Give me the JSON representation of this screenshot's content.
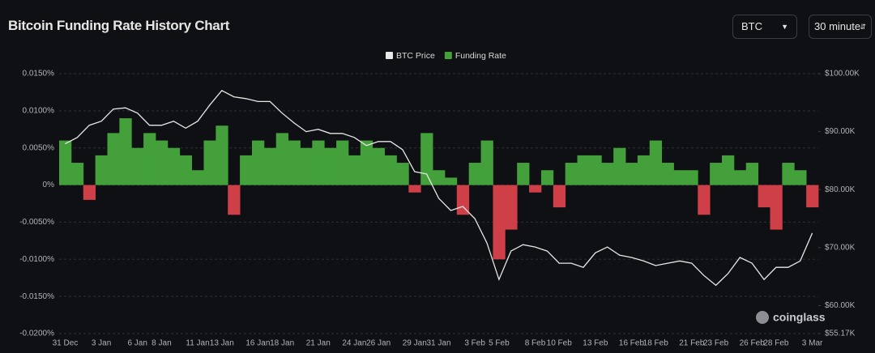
{
  "chart_data": {
    "type": "combo",
    "title": "Bitcoin Funding Rate History Chart",
    "controls": {
      "coin": "BTC",
      "interval": "30 minute"
    },
    "watermark": "coinglass",
    "categories": [
      "31 Dec",
      null,
      null,
      "3 Jan",
      null,
      null,
      "6 Jan",
      null,
      "8 Jan",
      null,
      null,
      "11 Jan",
      null,
      "13 Jan",
      null,
      null,
      "16 Jan",
      null,
      "18 Jan",
      null,
      null,
      "21 Jan",
      null,
      null,
      "24 Jan",
      null,
      "26 Jan",
      null,
      null,
      "29 Jan",
      null,
      "31 Jan",
      null,
      null,
      "3 Feb",
      null,
      "5 Feb",
      null,
      null,
      "8 Feb",
      null,
      "10 Feb",
      null,
      null,
      "13 Feb",
      null,
      null,
      "16 Feb",
      null,
      "18 Feb",
      null,
      null,
      "21 Feb",
      null,
      "23 Feb",
      null,
      null,
      "26 Feb",
      null,
      "28 Feb",
      null,
      null,
      "3 Mar"
    ],
    "series": [
      {
        "name": "BTC Price",
        "type": "line",
        "axis": "y2",
        "color": "#e8e8e8",
        "values": [
          87900,
          89000,
          91100,
          91800,
          93900,
          94100,
          93200,
          91100,
          91100,
          91800,
          90600,
          91800,
          94600,
          97100,
          96000,
          95700,
          95200,
          95200,
          93200,
          91500,
          90000,
          90400,
          89700,
          89700,
          89000,
          87600,
          88300,
          88300,
          86900,
          83100,
          82700,
          78500,
          76400,
          77100,
          75000,
          70800,
          64500,
          69400,
          70500,
          70100,
          69400,
          67300,
          67300,
          66600,
          69100,
          70100,
          68700,
          68300,
          67700,
          66900,
          67300,
          67700,
          67300,
          65200,
          63500,
          65500,
          68300,
          67300,
          64500,
          66600,
          66600,
          67700,
          72500
        ]
      },
      {
        "name": "Funding Rate",
        "type": "bar",
        "color": "#43a03a",
        "negative_color": "#cf3f48",
        "values": [
          0.006,
          0.003,
          -0.002,
          0.004,
          0.007,
          0.009,
          0.005,
          0.007,
          0.006,
          0.005,
          0.004,
          0.002,
          0.006,
          0.008,
          -0.004,
          0.004,
          0.006,
          0.005,
          0.007,
          0.006,
          0.005,
          0.006,
          0.005,
          0.006,
          0.004,
          0.006,
          0.005,
          0.004,
          0.003,
          -0.001,
          0.007,
          0.002,
          0.001,
          -0.004,
          0.003,
          0.006,
          -0.01,
          -0.006,
          0.003,
          -0.001,
          0.002,
          -0.003,
          0.003,
          0.004,
          0.004,
          0.003,
          0.005,
          0.003,
          0.004,
          0.006,
          0.003,
          0.002,
          0.002,
          -0.004,
          0.003,
          0.004,
          0.002,
          0.003,
          -0.003,
          -0.006,
          0.003,
          0.002,
          -0.003
        ]
      }
    ],
    "ylim": [
      -0.02,
      0.015
    ],
    "yticks": [
      {
        "value": -0.02,
        "label": "-0.0200%"
      },
      {
        "value": -0.015,
        "label": "-0.0150%"
      },
      {
        "value": -0.01,
        "label": "-0.0100%"
      },
      {
        "value": -0.005,
        "label": "-0.0050%"
      },
      {
        "value": 0,
        "label": "0%"
      },
      {
        "value": 0.005,
        "label": "0.0050%"
      },
      {
        "value": 0.01,
        "label": "0.0100%"
      },
      {
        "value": 0.015,
        "label": "0.0150%"
      }
    ],
    "y2lim": [
      55170,
      100000
    ],
    "y2ticks": [
      {
        "value": 55170,
        "label": "$55.17K"
      },
      {
        "value": 60000,
        "label": "$60.00K"
      },
      {
        "value": 70000,
        "label": "$70.00K"
      },
      {
        "value": 80000,
        "label": "$80.00K"
      },
      {
        "value": 90000,
        "label": "$90.00K"
      },
      {
        "value": 100000,
        "label": "$100.00K"
      }
    ],
    "grid": true
  }
}
